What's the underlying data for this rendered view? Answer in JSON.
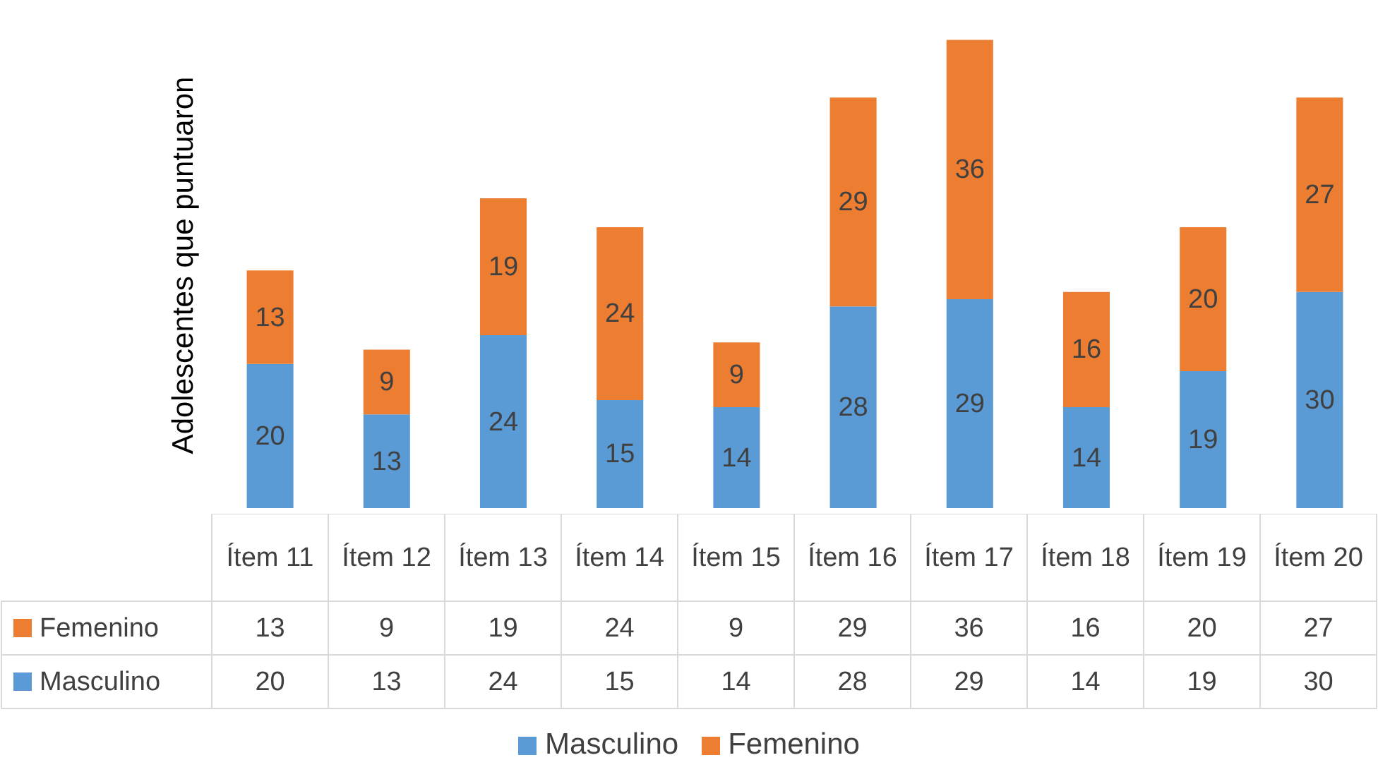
{
  "chart_data": [
    {
      "type": "bar",
      "stacked": true,
      "ylabel": "Adolescentes que puntuaron",
      "categories": [
        null,
        null,
        null,
        null,
        null,
        null,
        null,
        null,
        null,
        null
      ],
      "series": [
        {
          "name": "Masculino",
          "color": "#5b9bd5",
          "values": [
            20,
            13,
            24,
            15,
            14,
            28,
            29,
            14,
            19,
            30
          ],
          "value_labels": [
            "20",
            "13",
            "24",
            "15",
            "14",
            "28",
            "29",
            "14",
            "19",
            "30"
          ]
        },
        {
          "name": "Femenino",
          "color": "#ed7d31",
          "values": [
            13,
            9,
            19,
            24,
            9,
            29,
            36,
            16,
            20,
            27
          ],
          "value_labels": [
            "13",
            "9",
            "19",
            "24",
            "9",
            "29",
            "36",
            "16",
            "20",
            "27"
          ]
        }
      ],
      "legend": "bottom",
      "grid": false
    },
    {
      "type": "other",
      "categories": [
        "Ítem 11",
        "Ítem 12",
        "Ítem 13",
        "Ítem 14",
        "Ítem 15",
        "Ítem 16",
        "Ítem 17",
        "Ítem 18",
        "Ítem 19",
        "Ítem 20"
      ],
      "series": [
        {
          "name": "Femenino",
          "values": [
            13,
            9,
            19,
            24,
            9,
            29,
            36,
            16,
            20,
            27
          ]
        },
        {
          "name": "Masculino",
          "values": [
            20,
            13,
            24,
            15,
            14,
            28,
            29,
            14,
            19,
            30
          ]
        }
      ],
      "data_labels": true
    }
  ]
}
